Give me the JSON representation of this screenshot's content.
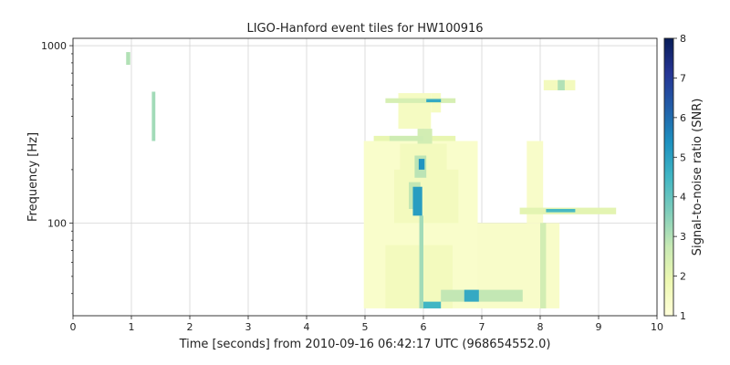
{
  "chart_data": {
    "type": "heatmap",
    "title": "LIGO-Hanford event tiles for HW100916",
    "xlabel": "Time [seconds] from 2010-09-16 06:42:17 UTC (968654552.0)",
    "ylabel": "Frequency [Hz]",
    "xlim": [
      0,
      10
    ],
    "ylim": [
      30,
      1100
    ],
    "yscale": "log",
    "x_ticks": [
      "0",
      "1",
      "2",
      "3",
      "4",
      "5",
      "6",
      "7",
      "8",
      "9",
      "10"
    ],
    "y_ticks": [
      "100",
      "1000"
    ],
    "grid": true,
    "colorbar": {
      "label": "Signal-to-noise ratio (SNR)",
      "range": [
        1,
        8
      ],
      "ticks": [
        "1",
        "2",
        "3",
        "4",
        "5",
        "6",
        "7",
        "8"
      ],
      "colormap": "YlGnBu",
      "stops": [
        "#ffffd9",
        "#edf8b1",
        "#c7e9b4",
        "#7fcdbb",
        "#41b6c4",
        "#1d91c0",
        "#225ea8",
        "#253494",
        "#081d58"
      ]
    },
    "tiles": [
      {
        "t0": 4.98,
        "t1": 6.93,
        "f0": 33,
        "f1": 290,
        "snr": 1.3
      },
      {
        "t0": 6.93,
        "t1": 8.33,
        "f0": 33,
        "f1": 100,
        "snr": 1.35
      },
      {
        "t0": 7.77,
        "t1": 8.05,
        "f0": 100,
        "f1": 290,
        "snr": 1.35
      },
      {
        "t0": 5.35,
        "t1": 6.5,
        "f0": 33,
        "f1": 75,
        "snr": 1.6
      },
      {
        "t0": 5.5,
        "t1": 6.6,
        "f0": 100,
        "f1": 200,
        "snr": 1.6
      },
      {
        "t0": 5.6,
        "t1": 6.4,
        "f0": 170,
        "f1": 280,
        "snr": 1.6
      },
      {
        "t0": 5.15,
        "t1": 6.55,
        "f0": 290,
        "f1": 310,
        "snr": 2.0
      },
      {
        "t0": 5.9,
        "t1": 6.15,
        "f0": 280,
        "f1": 340,
        "snr": 2.5
      },
      {
        "t0": 5.57,
        "t1": 6.13,
        "f0": 340,
        "f1": 540,
        "snr": 1.5
      },
      {
        "t0": 6.13,
        "t1": 6.3,
        "f0": 420,
        "f1": 540,
        "snr": 1.5
      },
      {
        "t0": 5.35,
        "t1": 6.55,
        "f0": 475,
        "f1": 505,
        "snr": 2.4
      },
      {
        "t0": 6.05,
        "t1": 6.3,
        "f0": 480,
        "f1": 500,
        "snr": 4.8
      },
      {
        "t0": 5.42,
        "t1": 6.0,
        "f0": 290,
        "f1": 310,
        "snr": 2.6
      },
      {
        "t0": 5.75,
        "t1": 5.95,
        "f0": 120,
        "f1": 170,
        "snr": 2.8
      },
      {
        "t0": 5.82,
        "t1": 5.98,
        "f0": 110,
        "f1": 160,
        "snr": 5.1
      },
      {
        "t0": 5.85,
        "t1": 6.05,
        "f0": 180,
        "f1": 240,
        "snr": 2.9
      },
      {
        "t0": 5.92,
        "t1": 6.02,
        "f0": 200,
        "f1": 230,
        "snr": 5.3
      },
      {
        "t0": 5.93,
        "t1": 6.0,
        "f0": 33,
        "f1": 110,
        "snr": 3.2
      },
      {
        "t0": 6.0,
        "t1": 6.3,
        "f0": 33,
        "f1": 36,
        "snr": 4.5
      },
      {
        "t0": 6.3,
        "t1": 7.7,
        "f0": 36,
        "f1": 42,
        "snr": 2.8
      },
      {
        "t0": 6.7,
        "t1": 6.95,
        "f0": 36,
        "f1": 42,
        "snr": 4.8
      },
      {
        "t0": 8.0,
        "t1": 8.1,
        "f0": 33,
        "f1": 100,
        "snr": 2.5
      },
      {
        "t0": 7.65,
        "t1": 9.3,
        "f0": 112,
        "f1": 122,
        "snr": 2.1
      },
      {
        "t0": 8.1,
        "t1": 8.6,
        "f0": 115,
        "f1": 120,
        "snr": 4.4
      },
      {
        "t0": 8.06,
        "t1": 8.6,
        "f0": 560,
        "f1": 640,
        "snr": 1.6
      },
      {
        "t0": 8.3,
        "t1": 8.42,
        "f0": 560,
        "f1": 640,
        "snr": 3.0
      },
      {
        "t0": 0.91,
        "t1": 0.98,
        "f0": 780,
        "f1": 920,
        "snr": 3.0
      },
      {
        "t0": 1.35,
        "t1": 1.41,
        "f0": 290,
        "f1": 550,
        "snr": 3.2
      }
    ]
  }
}
